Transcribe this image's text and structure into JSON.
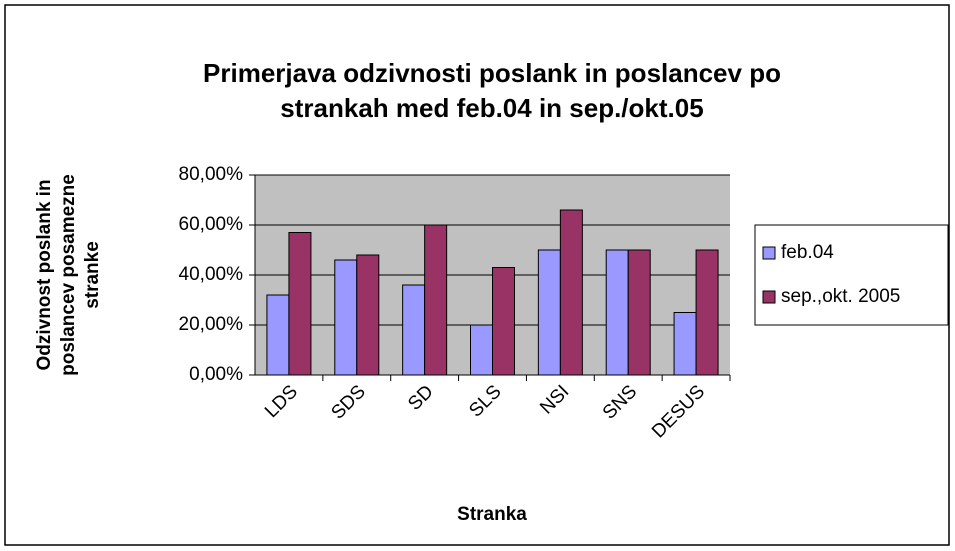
{
  "chart_data": {
    "type": "bar",
    "title": [
      "Primerjava odzivnosti poslank in poslancev po",
      "strankah med feb.04 in sep./okt.05"
    ],
    "x_label": "Stranka",
    "y_label": [
      "Odzivnost poslank in",
      "poslancev posamezne",
      "stranke"
    ],
    "categories": [
      "LDS",
      "SDS",
      "SD",
      "SLS",
      "NSI",
      "SNS",
      "DESUS"
    ],
    "series": [
      {
        "name": "feb.04",
        "color": "#9999ff",
        "values": [
          32,
          46,
          36,
          20,
          50,
          50,
          25
        ]
      },
      {
        "name": "sep.,okt. 2005",
        "color": "#993366",
        "values": [
          57,
          48,
          60,
          43,
          66,
          50,
          50
        ]
      }
    ],
    "ylim": [
      0,
      80
    ],
    "yticks": [
      {
        "value": 0,
        "label": "0,00%"
      },
      {
        "value": 20,
        "label": "20,00%"
      },
      {
        "value": 40,
        "label": "40,00%"
      },
      {
        "value": 60,
        "label": "60,00%"
      },
      {
        "value": 80,
        "label": "80,00%"
      }
    ],
    "grid": true,
    "legend": "right"
  }
}
